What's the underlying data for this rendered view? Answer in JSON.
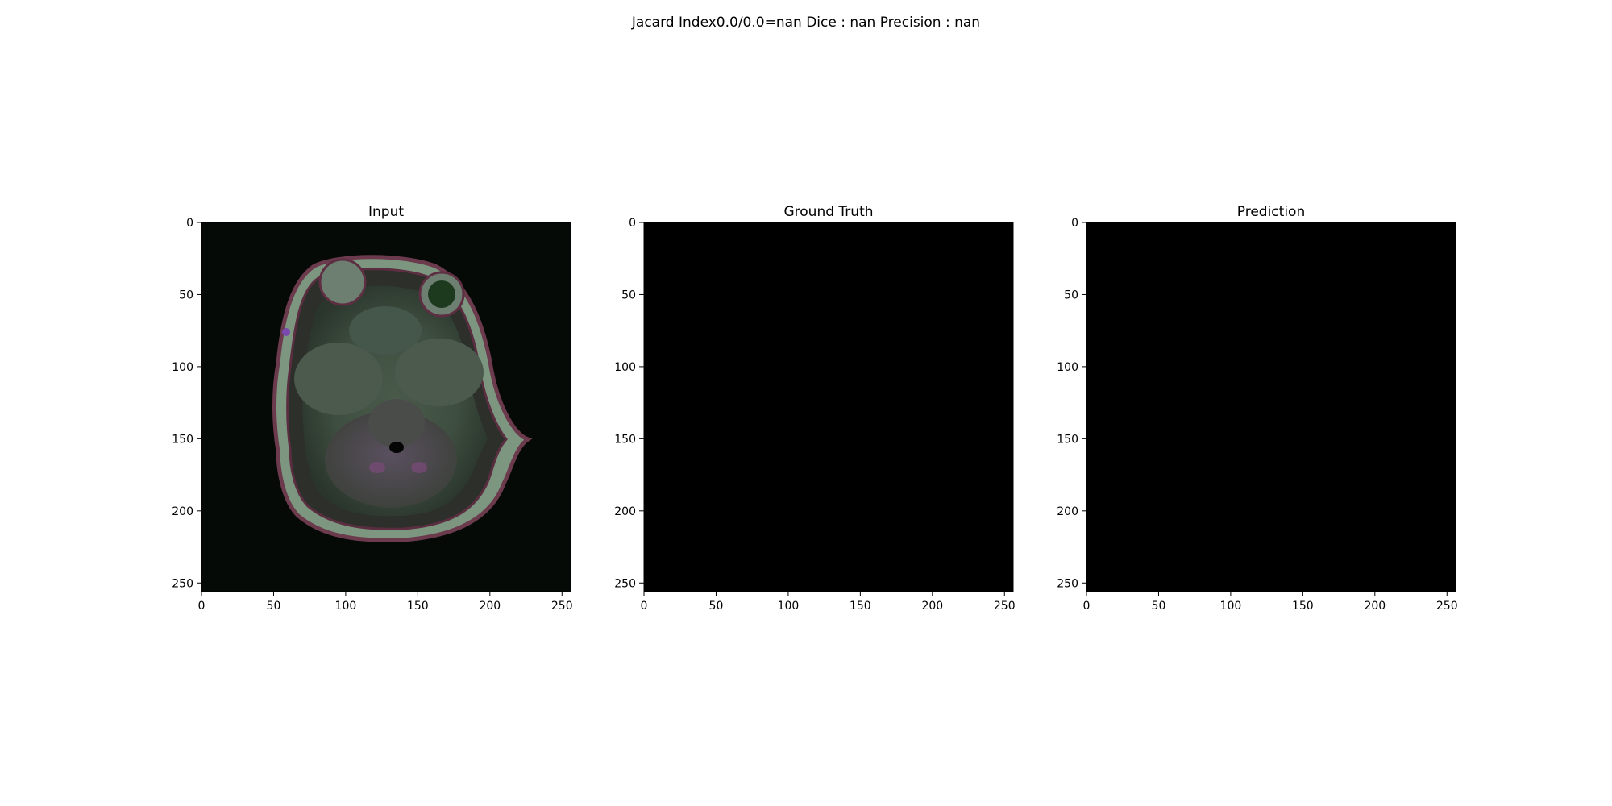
{
  "figure": {
    "suptitle": "Jacard Index0.0/0.0=nan Dice : nan Precision : nan"
  },
  "chart_data": [
    {
      "type": "heatmap",
      "title": "Input",
      "content": "axial brain MRI slice",
      "xlim": [
        0,
        256
      ],
      "ylim": [
        256,
        0
      ],
      "xticks": [
        0,
        50,
        100,
        150,
        200,
        250
      ],
      "yticks": [
        0,
        50,
        100,
        150,
        200,
        250
      ],
      "grid": false
    },
    {
      "type": "heatmap",
      "title": "Ground Truth",
      "content": "all-black mask",
      "xlim": [
        0,
        256
      ],
      "ylim": [
        256,
        0
      ],
      "xticks": [
        0,
        50,
        100,
        150,
        200,
        250
      ],
      "yticks": [
        0,
        50,
        100,
        150,
        200,
        250
      ],
      "grid": false
    },
    {
      "type": "heatmap",
      "title": "Prediction",
      "content": "all-black mask",
      "xlim": [
        0,
        256
      ],
      "ylim": [
        256,
        0
      ],
      "xticks": [
        0,
        50,
        100,
        150,
        200,
        250
      ],
      "yticks": [
        0,
        50,
        100,
        150,
        200,
        250
      ],
      "grid": false
    }
  ]
}
